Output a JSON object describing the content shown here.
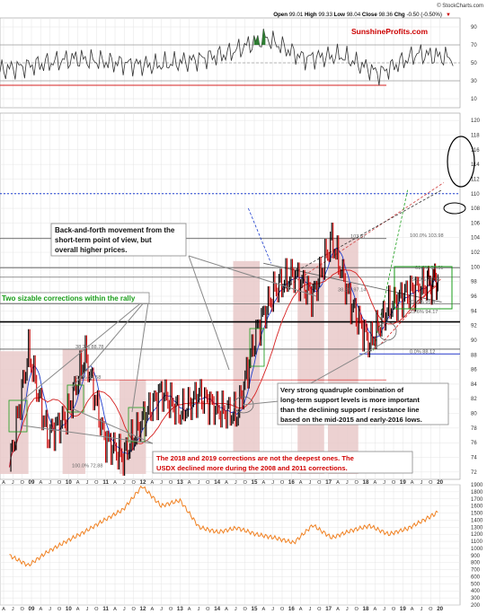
{
  "header": {
    "copyright": "© StockCharts.com",
    "quote_parts": [
      {
        "label": "Open",
        "value": "99.01"
      },
      {
        "label": "High",
        "value": "99.33"
      },
      {
        "label": "Low",
        "value": "98.04"
      },
      {
        "label": "Close",
        "value": "98.36"
      },
      {
        "label": "Chg",
        "value": "-0.50 (-0.50%)"
      }
    ],
    "chg_marker": "▼"
  },
  "watermark": {
    "part1": "Sunshine",
    "part2": "Profits",
    "part3": ".com"
  },
  "annotations": {
    "back_forth_1": "Back-and-forth movement from the",
    "back_forth_2": "short-term point of view, but",
    "back_forth_3": "overall higher prices.",
    "two_corrections": "Two sizable corrections within the rally",
    "quadruple_1": "Very strong quadruple combination of",
    "quadruple_2": "long-term support levels is more important",
    "quadruple_3": "than the declining support / resistance line",
    "quadruple_4": "based on the mid-2015 and early-2016 lows.",
    "corrections_1": "The 2018 and 2019 corrections are not the deepest ones. The",
    "corrections_2": "USDX declined more during the 2008 and 2011 corrections."
  },
  "fib_labels": {
    "f100_top": "100.0% 103.98",
    "f103": "103.87",
    "f618": "61.8% 99.91",
    "f382": "38.2% 97.14",
    "f500": "50.0% 98.58",
    "f236a": "23.6% 95.4",
    "f236b": "23.6% 94.17",
    "f0": "0.0% 88.12",
    "f618_old": "61.8% 94.96",
    "f382_old": "38.2% 88.78",
    "f0_old": "0.0% 84.58",
    "f100_bottom": "100.0% 72.88"
  },
  "colors": {
    "price_up": "#000000",
    "price_down": "#cc0000",
    "ma_50": "#1f3fcf",
    "ma_200": "#d62020",
    "rsi_fill": "#2e7d32",
    "correction_shade": "#e9c9c9",
    "gold": "#f08020",
    "annotation_red": "#d00000",
    "annotation_green": "#1a9e1a"
  },
  "chart_data": [
    {
      "type": "line",
      "name": "RSI",
      "y_ticks": [
        "90",
        "70",
        "50",
        "30",
        "10"
      ],
      "ylim": [
        0,
        100
      ],
      "x": [
        "2008",
        "2009",
        "2010",
        "2011",
        "2012",
        "2013",
        "2014",
        "2015",
        "2016",
        "2017",
        "2018",
        "2019",
        "2020"
      ],
      "values": [
        42,
        48,
        55,
        50,
        47,
        52,
        60,
        78,
        55,
        58,
        38,
        60,
        55
      ]
    },
    {
      "type": "line",
      "name": "USD Index",
      "y_ticks": [
        "120",
        "118",
        "116",
        "114",
        "112",
        "110",
        "108",
        "106",
        "104",
        "102",
        "100",
        "98",
        "96",
        "94",
        "92",
        "90",
        "88",
        "86",
        "84",
        "82",
        "80",
        "78",
        "76",
        "74",
        "72"
      ],
      "ylim": [
        71,
        121
      ],
      "x_ticks": [
        "A",
        "J",
        "O",
        "09",
        "A",
        "J",
        "O",
        "10",
        "A",
        "J",
        "O",
        "11",
        "A",
        "J",
        "O",
        "12",
        "A",
        "J",
        "O",
        "13",
        "A",
        "J",
        "O",
        "14",
        "A",
        "J",
        "O",
        "15",
        "A",
        "J",
        "O",
        "16",
        "A",
        "J",
        "O",
        "17",
        "A",
        "J",
        "O",
        "18",
        "A",
        "J",
        "O",
        "19",
        "A",
        "J",
        "O",
        "20"
      ],
      "x": [
        "2008.5",
        "2009.0",
        "2009.5",
        "2010.0",
        "2010.5",
        "2011.0",
        "2011.5",
        "2012.0",
        "2012.5",
        "2013.0",
        "2013.5",
        "2014.0",
        "2014.5",
        "2015.0",
        "2015.5",
        "2016.0",
        "2016.5",
        "2017.0",
        "2017.5",
        "2018.0",
        "2018.5",
        "2019.0",
        "2019.5",
        "2019.8"
      ],
      "values": [
        72.9,
        88.5,
        77.0,
        79.5,
        88.0,
        76.5,
        74.0,
        79.0,
        83.0,
        80.0,
        82.5,
        80.5,
        79.8,
        91.0,
        97.0,
        99.0,
        96.0,
        103.8,
        95.0,
        89.5,
        94.5,
        96.5,
        97.5,
        98.4
      ]
    },
    {
      "type": "line",
      "name": "Gold",
      "y_ticks": [
        "1900",
        "1800",
        "1700",
        "1600",
        "1500",
        "1400",
        "1300",
        "1200",
        "1100",
        "1000",
        "900",
        "800",
        "700",
        "600",
        "500",
        "400",
        "300",
        "200"
      ],
      "ylim": [
        200,
        1900
      ],
      "x": [
        "2008.5",
        "2009.0",
        "2009.5",
        "2010.0",
        "2010.5",
        "2011.0",
        "2011.5",
        "2012.0",
        "2012.5",
        "2013.0",
        "2013.5",
        "2014.0",
        "2014.5",
        "2015.0",
        "2015.5",
        "2016.0",
        "2016.5",
        "2017.0",
        "2017.5",
        "2018.0",
        "2018.5",
        "2019.0",
        "2019.5",
        "2019.8"
      ],
      "values": [
        900,
        760,
        950,
        1100,
        1240,
        1400,
        1550,
        1880,
        1600,
        1680,
        1300,
        1230,
        1290,
        1200,
        1150,
        1080,
        1330,
        1150,
        1250,
        1320,
        1200,
        1280,
        1420,
        1510
      ]
    }
  ]
}
